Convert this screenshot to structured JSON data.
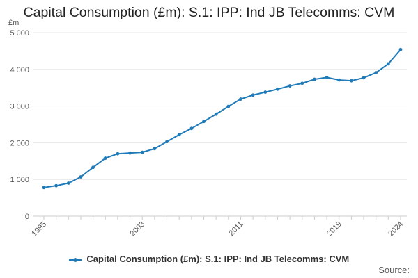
{
  "chart_data": {
    "type": "line",
    "title": "Capital Consumption (£m): S.1: IPP: Ind JB Telecomms: CVM",
    "ylabel": "£m",
    "xlabel": "",
    "ylim": [
      0,
      5000
    ],
    "yticks": [
      0,
      1000,
      2000,
      3000,
      4000,
      5000
    ],
    "ytick_labels": [
      "0",
      "1 000",
      "2 000",
      "3 000",
      "4 000",
      "5 000"
    ],
    "xlim": [
      1995,
      2024
    ],
    "xticks": [
      1995,
      2003,
      2011,
      2019,
      2024
    ],
    "xtick_labels": [
      "1995",
      "2003",
      "2011",
      "2019",
      "2024"
    ],
    "grid": "horizontal",
    "legend_position": "bottom",
    "series": [
      {
        "name": "Capital Consumption (£m): S.1: IPP: Ind JB Telecomms: CVM",
        "color": "#1f7ab8",
        "x": [
          1995,
          1996,
          1997,
          1998,
          1999,
          2000,
          2001,
          2002,
          2003,
          2004,
          2005,
          2006,
          2007,
          2008,
          2009,
          2010,
          2011,
          2012,
          2013,
          2014,
          2015,
          2016,
          2017,
          2018,
          2019,
          2020,
          2021,
          2022,
          2023,
          2024
        ],
        "values": [
          780,
          830,
          900,
          1070,
          1330,
          1580,
          1700,
          1720,
          1740,
          1840,
          2030,
          2220,
          2390,
          2580,
          2780,
          2990,
          3190,
          3300,
          3380,
          3460,
          3550,
          3620,
          3730,
          3780,
          3710,
          3690,
          3770,
          3910,
          4150,
          4540
        ]
      }
    ]
  },
  "source_label": "Source:"
}
